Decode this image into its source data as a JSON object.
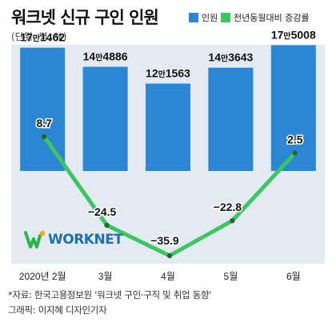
{
  "title": "워크넷 신규 구인 인원",
  "unit": "(단위: 명, %)",
  "legend": [
    {
      "label": "인원",
      "color": "#2b87d3"
    },
    {
      "label": "전년동월대비 증감률",
      "color": "#3dc55f"
    }
  ],
  "logo_text": "WORKNET",
  "footer": {
    "source": "*자료: 한국고용정보원 '워크넷 구인·구직 및 취업 동향'",
    "credit": "그래픽: 이지혜 디자인기자"
  },
  "chart_data": {
    "type": "bar",
    "categories": [
      "2020년 2월",
      "3월",
      "4월",
      "5월",
      "6월"
    ],
    "series": [
      {
        "name": "인원",
        "values": [
          171462,
          144886,
          121563,
          143643,
          175008
        ],
        "labels": [
          {
            "man": "17",
            "unit": "만",
            "rest": "1462"
          },
          {
            "man": "14",
            "unit": "만",
            "rest": "4886"
          },
          {
            "man": "12",
            "unit": "만",
            "rest": "1563"
          },
          {
            "man": "14",
            "unit": "만",
            "rest": "3643"
          },
          {
            "man": "17",
            "unit": "만",
            "rest": "5008"
          }
        ]
      },
      {
        "name": "전년동월대비 증감률",
        "type": "line",
        "values": [
          8.7,
          -24.5,
          -35.9,
          -22.8,
          2.5
        ],
        "labels": [
          "8.7",
          "−24.5",
          "−35.9",
          "−22.8",
          "2.5"
        ]
      }
    ],
    "colors": {
      "bar": "#2b87d3",
      "line": "#3dc55f",
      "plot_bg": "#e4eaf2"
    }
  }
}
